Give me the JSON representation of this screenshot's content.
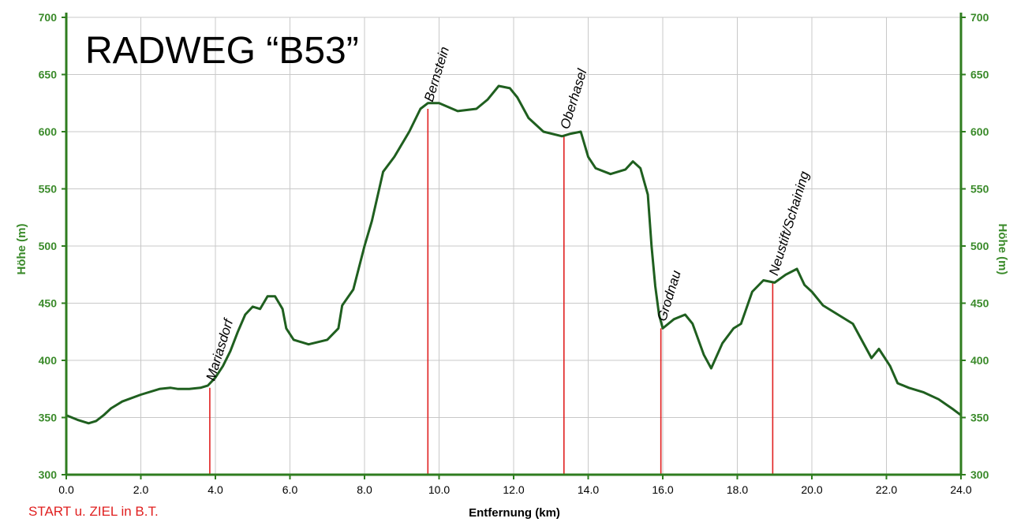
{
  "chart_data": {
    "type": "line",
    "title": "RADWEG “B53”",
    "xlabel": "Entfernung (km)",
    "ylabel": "Höhe (m)",
    "ylabel_right": "Höhe (m)",
    "footer_note": "START u. ZIEL in B.T.",
    "xlim": [
      0,
      24
    ],
    "ylim": [
      300,
      700
    ],
    "x_ticks": [
      "0.0",
      "2.0",
      "4.0",
      "6.0",
      "8.0",
      "10.0",
      "12.0",
      "14.0",
      "16.0",
      "18.0",
      "20.0",
      "22.0",
      "24.0"
    ],
    "y_ticks": [
      "300",
      "350",
      "400",
      "450",
      "500",
      "550",
      "600",
      "650",
      "700"
    ],
    "grid": true,
    "colors": {
      "line": "#1f5f1f",
      "axis": "#2f7d1f",
      "grid": "#c8c8c8",
      "marker": "#e02020"
    },
    "series": [
      {
        "x": [
          0.0,
          0.3,
          0.6,
          0.8,
          1.0,
          1.2,
          1.5,
          2.0,
          2.5,
          2.8,
          3.0,
          3.3,
          3.6,
          3.8,
          4.0,
          4.2,
          4.4,
          4.6,
          4.8,
          5.0,
          5.2,
          5.4,
          5.6,
          5.8,
          5.9,
          6.1,
          6.5,
          7.0,
          7.3,
          7.4,
          7.7,
          8.0,
          8.2,
          8.5,
          8.8,
          9.2,
          9.5,
          9.7,
          10.0,
          10.5,
          11.0,
          11.3,
          11.6,
          11.9,
          12.1,
          12.4,
          12.8,
          13.3,
          13.5,
          13.8,
          14.0,
          14.2,
          14.6,
          15.0,
          15.2,
          15.4,
          15.6,
          15.7,
          15.8,
          15.9,
          16.0,
          16.3,
          16.6,
          16.8,
          17.1,
          17.3,
          17.6,
          17.9,
          18.1,
          18.4,
          18.7,
          19.0,
          19.3,
          19.6,
          19.8,
          20.0,
          20.3,
          20.8,
          21.1,
          21.3,
          21.6,
          21.8,
          22.1,
          22.3,
          22.6,
          23.0,
          23.4,
          23.8,
          24.0
        ],
        "y": [
          352,
          348,
          345,
          347,
          352,
          358,
          364,
          370,
          375,
          376,
          375,
          375,
          376,
          378,
          385,
          395,
          408,
          425,
          440,
          447,
          445,
          456,
          456,
          445,
          428,
          418,
          414,
          418,
          428,
          448,
          462,
          500,
          522,
          565,
          578,
          600,
          620,
          625,
          625,
          618,
          620,
          628,
          640,
          638,
          630,
          612,
          600,
          596,
          598,
          600,
          578,
          568,
          563,
          567,
          574,
          568,
          545,
          500,
          465,
          440,
          428,
          436,
          440,
          432,
          405,
          393,
          415,
          428,
          432,
          460,
          470,
          468,
          475,
          480,
          466,
          460,
          448,
          438,
          432,
          420,
          402,
          410,
          395,
          380,
          376,
          372,
          366,
          357,
          352
        ]
      }
    ],
    "annotations": [
      {
        "label": "Mariasdorf",
        "x": 3.85,
        "y": 376
      },
      {
        "label": "Bernstein",
        "x": 9.7,
        "y": 620
      },
      {
        "label": "Oberhasel",
        "x": 13.35,
        "y": 596
      },
      {
        "label": "Grodnau",
        "x": 15.95,
        "y": 428
      },
      {
        "label": "Neustift/Schaining",
        "x": 18.95,
        "y": 468
      }
    ]
  }
}
